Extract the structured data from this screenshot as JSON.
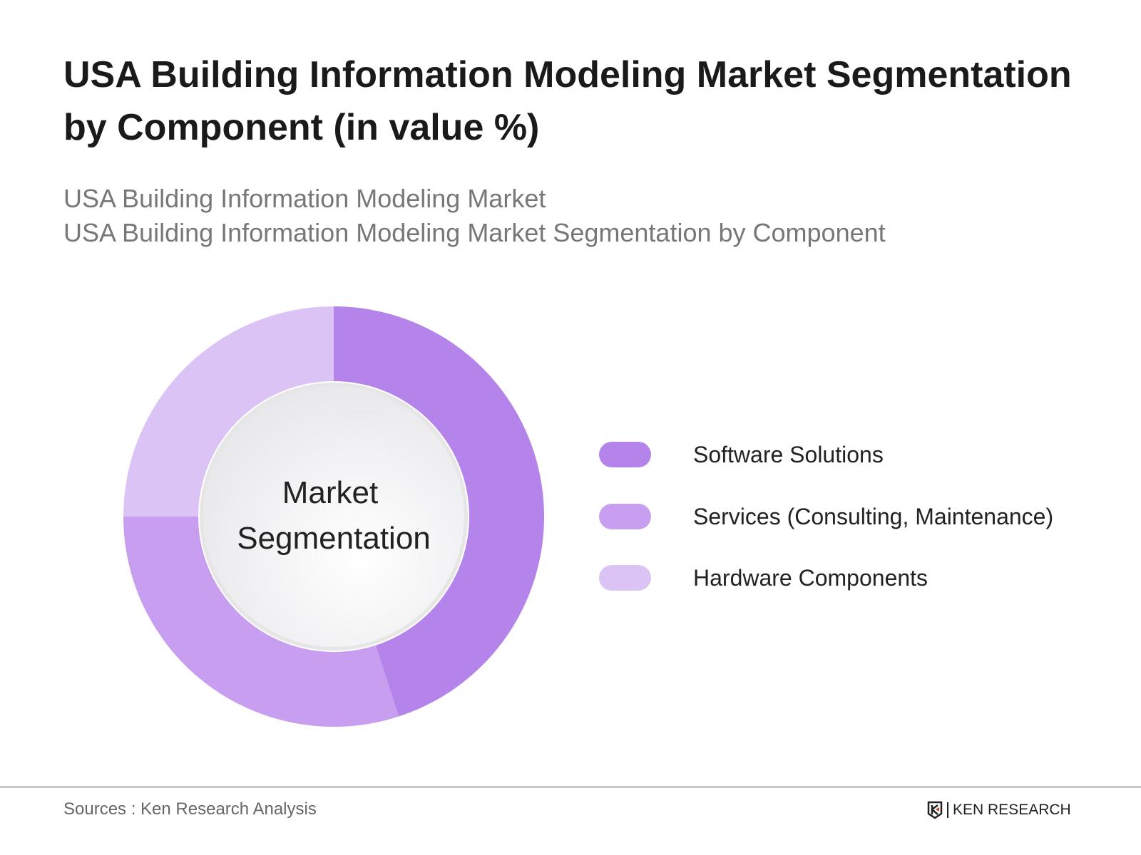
{
  "header": {
    "title": "USA Building Information Modeling Market Segmentation by Component (in value %)",
    "subtitle_1": "USA Building Information Modeling Market",
    "subtitle_2": "USA Building Information Modeling Market Segmentation by Component"
  },
  "chart_data": {
    "type": "pie",
    "variant": "donut",
    "center_label": [
      "Market",
      "Segmentation"
    ],
    "categories": [
      "Software Solutions",
      "Services (Consulting, Maintenance)",
      "Hardware Components"
    ],
    "values": [
      45,
      30,
      25
    ],
    "colors": [
      "#b484ea",
      "#c89ef0",
      "#dcc3f6"
    ],
    "legend_position": "right"
  },
  "footer": {
    "source": "Sources : Ken Research Analysis",
    "logo_text": "KEN RESEARCH"
  }
}
